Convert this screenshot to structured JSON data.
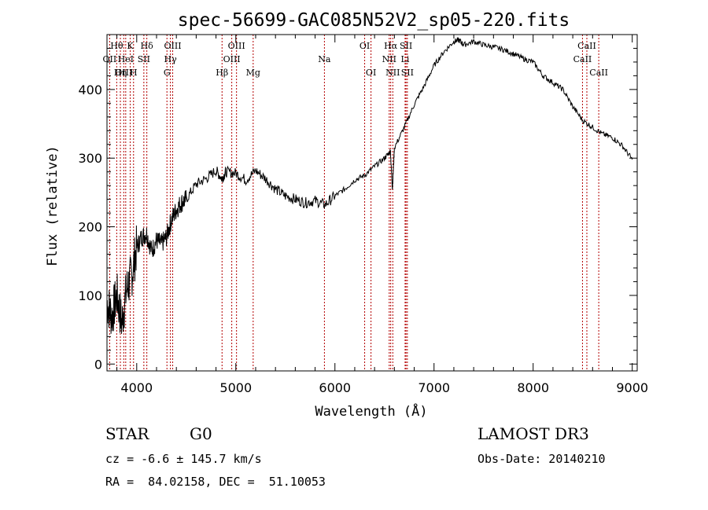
{
  "chart_data": {
    "type": "line",
    "title": "spec-56699-GAC085N52V2_sp05-220.fits",
    "xlabel": "Wavelength (Å)",
    "ylabel": "Flux (relative)",
    "xlim": [
      3700,
      9050
    ],
    "ylim": [
      -10,
      480
    ],
    "x_ticks": [
      4000,
      5000,
      6000,
      7000,
      8000,
      9000
    ],
    "y_ticks": [
      0,
      100,
      200,
      300,
      400
    ],
    "x_tick_labels": [
      "4000",
      "5000",
      "6000",
      "7000",
      "8000",
      "9000"
    ],
    "y_tick_labels": [
      "0",
      "100",
      "200",
      "300",
      "400"
    ],
    "series": [
      {
        "name": "spectrum",
        "x": [
          3700,
          3750,
          3800,
          3850,
          3900,
          3950,
          4000,
          4050,
          4100,
          4150,
          4200,
          4250,
          4300,
          4350,
          4400,
          4450,
          4500,
          4600,
          4700,
          4800,
          4860,
          4900,
          5000,
          5100,
          5200,
          5300,
          5400,
          5500,
          5600,
          5700,
          5800,
          5900,
          6000,
          6100,
          6200,
          6300,
          6400,
          6500,
          6560,
          6580,
          6600,
          6700,
          6800,
          6900,
          7000,
          7100,
          7200,
          7250,
          7300,
          7400,
          7500,
          7600,
          7700,
          7800,
          7900,
          8000,
          8100,
          8200,
          8300,
          8400,
          8500,
          8600,
          8700,
          8800,
          8900,
          9000
        ],
        "y": [
          90,
          70,
          100,
          60,
          110,
          130,
          170,
          185,
          190,
          165,
          180,
          175,
          185,
          210,
          225,
          235,
          240,
          262,
          270,
          282,
          270,
          280,
          278,
          268,
          282,
          270,
          255,
          245,
          240,
          235,
          238,
          232,
          245,
          255,
          268,
          275,
          288,
          300,
          310,
          255,
          315,
          345,
          378,
          405,
          435,
          455,
          470,
          472,
          465,
          470,
          465,
          462,
          458,
          452,
          445,
          440,
          420,
          410,
          400,
          375,
          355,
          345,
          335,
          330,
          318,
          298
        ]
      }
    ],
    "lines": [
      {
        "label": "Hθ",
        "x": 3798,
        "row": 0
      },
      {
        "label": "OII",
        "x": 3727,
        "row": 1
      },
      {
        "label": "OIII",
        "x": 3869,
        "row": 2
      },
      {
        "label": "HeI",
        "x": 3889,
        "row": 1
      },
      {
        "label": "Hη",
        "x": 3835,
        "row": 2
      },
      {
        "label": "K",
        "x": 3934,
        "row": 0
      },
      {
        "label": "H",
        "x": 3968,
        "row": 2
      },
      {
        "label": "SII",
        "x": 4072,
        "row": 1
      },
      {
        "label": "Hδ",
        "x": 4102,
        "row": 0
      },
      {
        "label": "OIII",
        "x": 4363,
        "row": 0
      },
      {
        "label": "Hγ",
        "x": 4340,
        "row": 1
      },
      {
        "label": "G",
        "x": 4305,
        "row": 2
      },
      {
        "label": "Hβ",
        "x": 4861,
        "row": 2
      },
      {
        "label": "OIII",
        "x": 5007,
        "row": 0
      },
      {
        "label": "OIII",
        "x": 4959,
        "row": 1
      },
      {
        "label": "Mg",
        "x": 5175,
        "row": 2
      },
      {
        "label": "Na",
        "x": 5894,
        "row": 1
      },
      {
        "label": "OI",
        "x": 6300,
        "row": 0
      },
      {
        "label": "OI",
        "x": 6364,
        "row": 2
      },
      {
        "label": "Hα",
        "x": 6563,
        "row": 0
      },
      {
        "label": "NII",
        "x": 6548,
        "row": 1
      },
      {
        "label": "NII",
        "x": 6584,
        "row": 2
      },
      {
        "label": "SII",
        "x": 6717,
        "row": 0
      },
      {
        "label": "Li",
        "x": 6708,
        "row": 1
      },
      {
        "label": "SII",
        "x": 6731,
        "row": 2
      },
      {
        "label": "CaII",
        "x": 8542,
        "row": 0
      },
      {
        "label": "CaII",
        "x": 8498,
        "row": 1
      },
      {
        "label": "CaII",
        "x": 8662,
        "row": 2
      }
    ]
  },
  "info": {
    "object_type": "STAR",
    "subclass": "G0",
    "survey": "LAMOST DR3",
    "redshift": "cz = -6.6 ± 145.7 km/s",
    "obs_date": "Obs-Date: 20140210",
    "coords": "RA =  84.02158, DEC =  51.10053"
  }
}
